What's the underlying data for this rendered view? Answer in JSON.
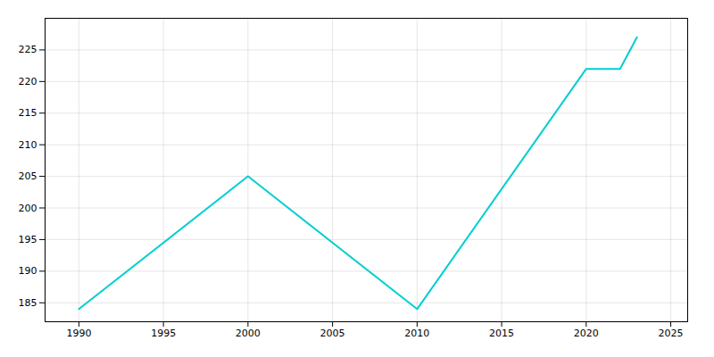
{
  "chart_data": {
    "type": "line",
    "x": [
      1990,
      2000,
      2010,
      2020,
      2021,
      2022,
      2023
    ],
    "values": [
      184,
      205,
      184,
      222,
      222,
      222,
      227
    ],
    "color": "#00CED1",
    "xlim": [
      1988,
      2026
    ],
    "ylim": [
      182,
      230
    ],
    "xticks": [
      1990,
      1995,
      2000,
      2005,
      2010,
      2015,
      2020,
      2025
    ],
    "yticks": [
      185,
      190,
      195,
      200,
      205,
      210,
      215,
      220,
      225
    ],
    "grid": true
  }
}
